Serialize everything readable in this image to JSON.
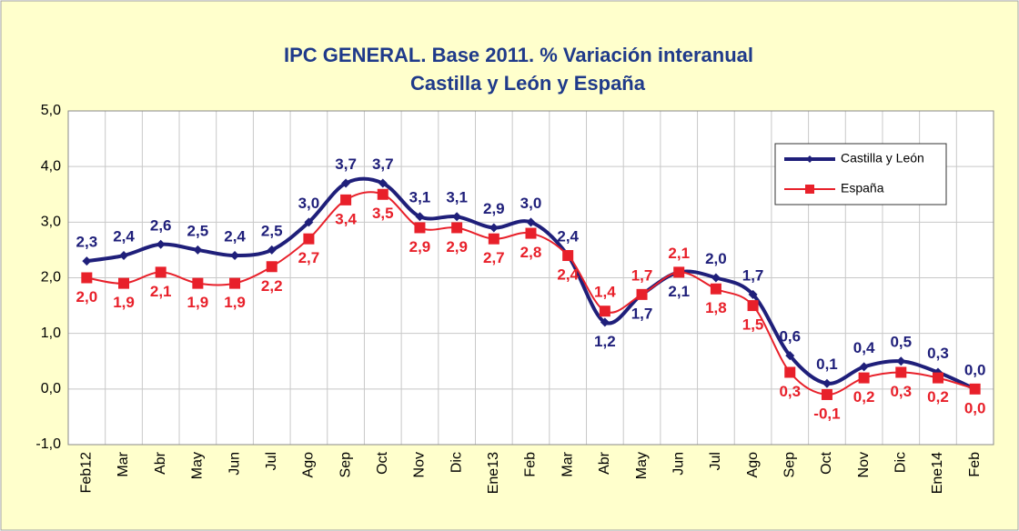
{
  "chart_data": {
    "type": "line",
    "title": "IPC GENERAL. Base 2011. % Variación interanual",
    "subtitle": "Castilla y León y España",
    "categories": [
      "Feb12",
      "Mar",
      "Abr",
      "May",
      "Jun",
      "Jul",
      "Ago",
      "Sep",
      "Oct",
      "Nov",
      "Dic",
      "Ene13",
      "Feb",
      "Mar",
      "Abr",
      "May",
      "Jun",
      "Jul",
      "Ago",
      "Sep",
      "Oct",
      "Nov",
      "Dic",
      "Ene14",
      "Feb"
    ],
    "series": [
      {
        "name": "Castilla y León",
        "color": "#1f1f7a",
        "values": [
          2.3,
          2.4,
          2.6,
          2.5,
          2.4,
          2.5,
          3.0,
          3.7,
          3.7,
          3.1,
          3.1,
          2.9,
          3.0,
          2.4,
          1.2,
          1.7,
          2.1,
          2.0,
          1.7,
          0.6,
          0.1,
          0.4,
          0.5,
          0.3,
          0.0
        ],
        "value_labels": [
          "2,3",
          "2,4",
          "2,6",
          "2,5",
          "2,4",
          "2,5",
          "3,0",
          "3,7",
          "3,7",
          "3,1",
          "3,1",
          "2,9",
          "3,0",
          "2,4",
          "1,2",
          "1,7",
          "2,1",
          "2,0",
          "1,7",
          "0,6",
          "0,1",
          "0,4",
          "0,5",
          "0,3",
          "0,0"
        ]
      },
      {
        "name": "España",
        "color": "#e8202a",
        "values": [
          2.0,
          1.9,
          2.1,
          1.9,
          1.9,
          2.2,
          2.7,
          3.4,
          3.5,
          2.9,
          2.9,
          2.7,
          2.8,
          2.4,
          1.4,
          1.7,
          2.1,
          1.8,
          1.5,
          0.3,
          -0.1,
          0.2,
          0.3,
          0.2,
          0.0
        ],
        "value_labels": [
          "2,0",
          "1,9",
          "2,1",
          "1,9",
          "1,9",
          "2,2",
          "2,7",
          "3,4",
          "3,5",
          "2,9",
          "2,9",
          "2,7",
          "2,8",
          "2,4",
          "1,4",
          "1,7",
          "2,1",
          "1,8",
          "1,5",
          "0,3",
          "-0,1",
          "0,2",
          "0,3",
          "0,2",
          "0,0"
        ]
      }
    ],
    "ylim": [
      -1,
      5
    ],
    "yticks": [
      {
        "value": -1,
        "label": "-1,0"
      },
      {
        "value": 0,
        "label": "0,0"
      },
      {
        "value": 1,
        "label": "1,0"
      },
      {
        "value": 2,
        "label": "2,0"
      },
      {
        "value": 3,
        "label": "3,0"
      },
      {
        "value": 4,
        "label": "4,0"
      },
      {
        "value": 5,
        "label": "5,0"
      }
    ],
    "grid": true,
    "legend": "upper right"
  }
}
